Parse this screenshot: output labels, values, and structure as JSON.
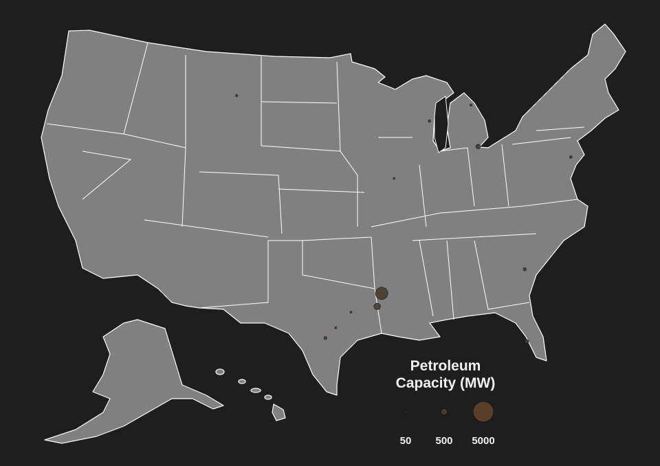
{
  "colors": {
    "background": "#1e1e1e",
    "land": "#808080",
    "border": "#ffffff",
    "point_fill": "#4a3a2c",
    "legend_large": "#5a3f28"
  },
  "legend": {
    "title_line1": "Petroleum",
    "title_line2": "Capacity (MW)",
    "values": [
      50,
      500,
      5000
    ],
    "labels": [
      "50",
      "500",
      "5000"
    ]
  },
  "points": [
    {
      "lon": -106.6,
      "lat": 45.9,
      "mw": 60
    },
    {
      "lon": -87.7,
      "lat": 44.1,
      "mw": 80
    },
    {
      "lon": -83.5,
      "lat": 45.0,
      "mw": 60
    },
    {
      "lon": -83.4,
      "lat": 41.8,
      "mw": 250
    },
    {
      "lon": -75.2,
      "lat": 39.9,
      "mw": 80
    },
    {
      "lon": -91.4,
      "lat": 39.9,
      "mw": 50
    },
    {
      "lon": -81.1,
      "lat": 32.1,
      "mw": 120
    },
    {
      "lon": -92.9,
      "lat": 31.2,
      "mw": 1800
    },
    {
      "lon": -93.3,
      "lat": 30.2,
      "mw": 500
    },
    {
      "lon": -95.4,
      "lat": 29.8,
      "mw": 40
    },
    {
      "lon": -96.6,
      "lat": 28.6,
      "mw": 40
    },
    {
      "lon": -97.4,
      "lat": 27.8,
      "mw": 120
    },
    {
      "lon": -81.9,
      "lat": 26.6,
      "mw": 150
    }
  ]
}
